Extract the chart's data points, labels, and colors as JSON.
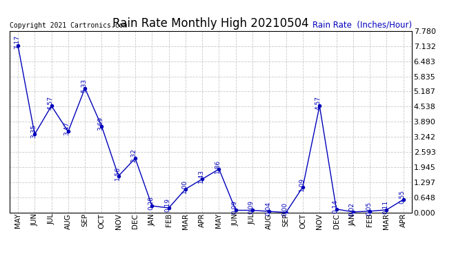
{
  "title": "Rain Rate Monthly High 20210504",
  "ylabel": "Rain Rate  (Inches/Hour)",
  "copyright": "Copyright 2021 Cartronics.com",
  "months": [
    "MAY",
    "JUN",
    "JUL",
    "AUG",
    "SEP",
    "OCT",
    "NOV",
    "DEC",
    "JAN",
    "FEB",
    "MAR",
    "APR",
    "MAY",
    "JUN",
    "JUL",
    "AUG",
    "SEP",
    "OCT",
    "NOV",
    "DEC",
    "JAN",
    "FEB",
    "MAR",
    "APR"
  ],
  "values": [
    7.17,
    3.35,
    4.57,
    3.47,
    5.33,
    3.69,
    1.56,
    2.32,
    0.28,
    0.19,
    1.0,
    1.43,
    1.86,
    0.09,
    0.09,
    0.04,
    0.0,
    1.09,
    4.57,
    0.14,
    0.02,
    0.05,
    0.11,
    0.55
  ],
  "yticks": [
    0.0,
    0.648,
    1.297,
    1.945,
    2.593,
    3.242,
    3.89,
    4.538,
    5.187,
    5.835,
    6.483,
    7.132,
    7.78
  ],
  "ylim": [
    0.0,
    7.78
  ],
  "line_color": "#0000bb",
  "marker_color": "#0000bb",
  "title_color": "#000000",
  "ylabel_color": "#0000bb",
  "copyright_color": "#000000",
  "grid_color": "#bbbbbb",
  "background_color": "#ffffff",
  "label_fontsize": 6.5,
  "title_fontsize": 12,
  "ylabel_fontsize": 8.5,
  "xtick_fontsize": 7.5,
  "ytick_fontsize": 8,
  "copyright_fontsize": 7
}
